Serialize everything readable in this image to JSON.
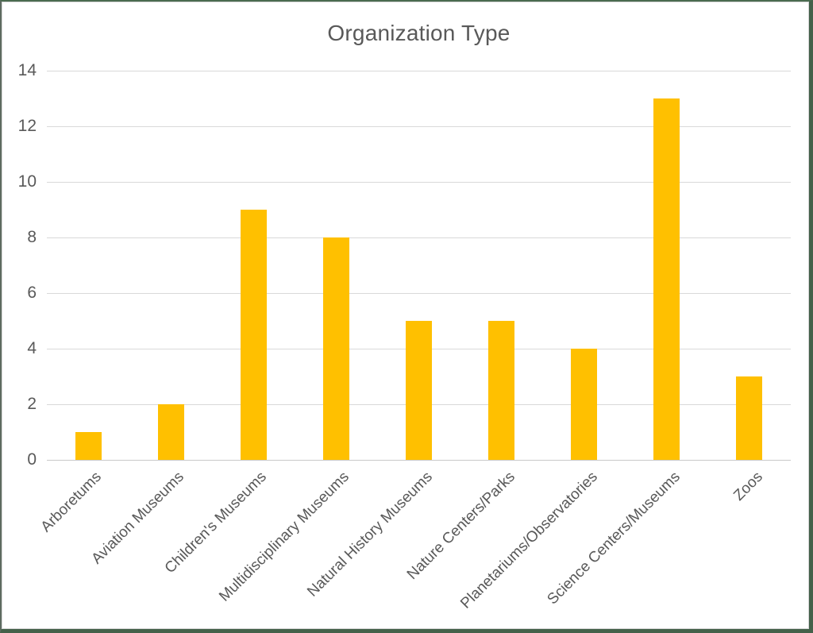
{
  "frame": {
    "border_color": "#44614a",
    "background": "#ffffff"
  },
  "chart_data": {
    "type": "bar",
    "title": "Organization Type",
    "categories": [
      "Arboretums",
      "Aviation Museums",
      "Children's Museums",
      "Multidisciplinary Museums",
      "Natural History Museums",
      "Nature Centers/Parks",
      "Planetariums/Observatories",
      "Science Centers/Museums",
      "Zoos"
    ],
    "values": [
      1,
      2,
      9,
      8,
      5,
      5,
      4,
      13,
      3
    ],
    "xlabel": "",
    "ylabel": "",
    "ylim": [
      0,
      14
    ],
    "yticks": [
      0,
      2,
      4,
      6,
      8,
      10,
      12,
      14
    ],
    "bar_color": "#FFC000",
    "gridline_color": "#D9D9D9",
    "text_color": "#595959",
    "grid": "horizontal",
    "legend_position": "none",
    "x_label_rotation_deg": -45
  }
}
